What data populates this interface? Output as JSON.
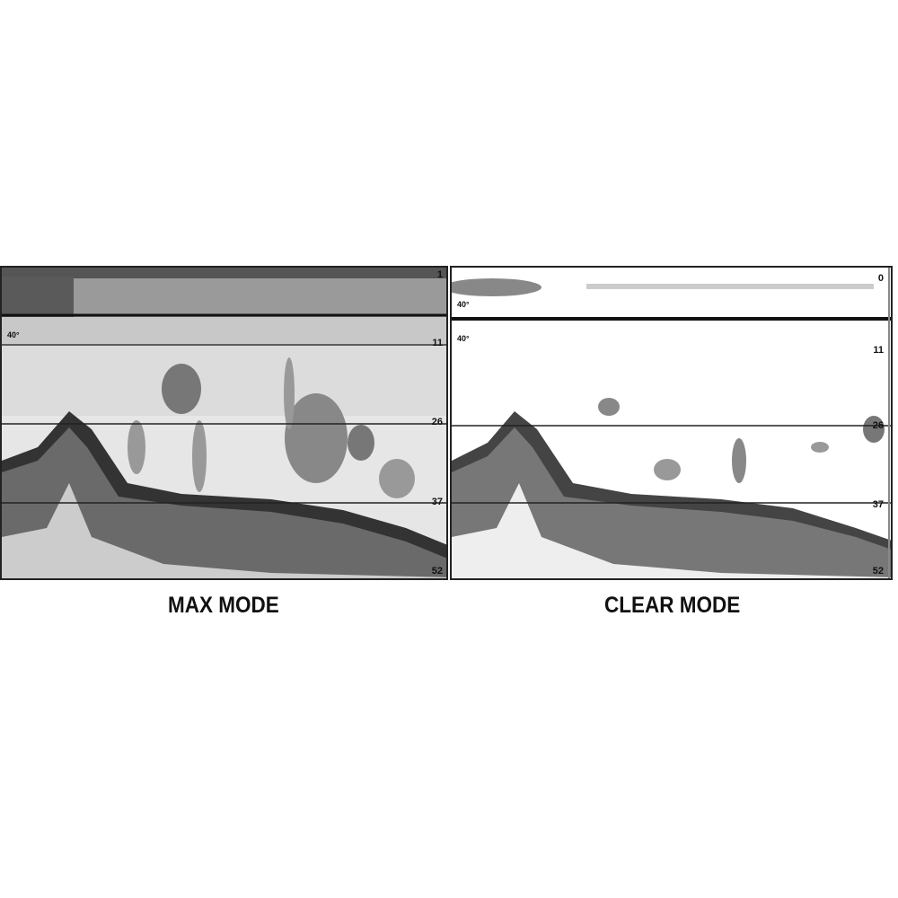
{
  "panels": [
    {
      "caption": "MAX MODE",
      "depth_labels": [
        "1",
        "11",
        "26",
        "37",
        "52"
      ],
      "angle_labels": [
        "40°"
      ]
    },
    {
      "caption": "CLEAR MODE",
      "depth_labels": [
        "0",
        "11",
        "26",
        "37",
        "52"
      ],
      "angle_labels": [
        "40°",
        "40°"
      ]
    }
  ]
}
